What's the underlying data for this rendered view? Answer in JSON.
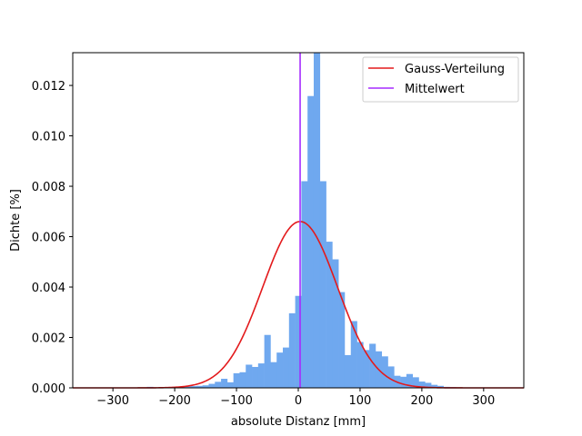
{
  "chart_data": {
    "type": "histogram",
    "xlabel": "absolute Distanz [mm]",
    "ylabel": "Dichte [%]",
    "xlim": [
      -365,
      365
    ],
    "ylim": [
      0,
      0.0133
    ],
    "x_ticks": [
      -300,
      -200,
      -100,
      0,
      100,
      200,
      300
    ],
    "x_tick_labels": [
      "−300",
      "−200",
      "−100",
      "0",
      "100",
      "200",
      "300"
    ],
    "y_ticks": [
      0,
      0.002,
      0.004,
      0.006,
      0.008,
      0.01,
      0.012
    ],
    "y_tick_labels": [
      "0.000",
      "0.002",
      "0.004",
      "0.006",
      "0.008",
      "0.010",
      "0.012"
    ],
    "grid": false,
    "legend_position": "top-right",
    "histogram": {
      "color": "#6fa8ef",
      "bins": [
        [
          -245,
          -235,
          4e-05
        ],
        [
          -235,
          -225,
          1e-05
        ],
        [
          -225,
          -215,
          2e-05
        ],
        [
          -215,
          -205,
          1e-05
        ],
        [
          -205,
          -195,
          4e-05
        ],
        [
          -195,
          -185,
          3e-05
        ],
        [
          -185,
          -175,
          5e-05
        ],
        [
          -175,
          -165,
          7e-05
        ],
        [
          -165,
          -155,
          8e-05
        ],
        [
          -155,
          -145,
          0.0001
        ],
        [
          -145,
          -135,
          0.00016
        ],
        [
          -135,
          -125,
          0.00024
        ],
        [
          -125,
          -115,
          0.00036
        ],
        [
          -115,
          -105,
          0.00022
        ],
        [
          -105,
          -95,
          0.00058
        ],
        [
          -95,
          -85,
          0.00062
        ],
        [
          -85,
          -75,
          0.00092
        ],
        [
          -75,
          -65,
          0.00083
        ],
        [
          -65,
          -55,
          0.00097
        ],
        [
          -55,
          -45,
          0.0021
        ],
        [
          -45,
          -35,
          0.00102
        ],
        [
          -35,
          -25,
          0.0014
        ],
        [
          -25,
          -15,
          0.0016
        ],
        [
          -15,
          -5,
          0.00296
        ],
        [
          -5,
          5,
          0.00365
        ],
        [
          5,
          15,
          0.0082
        ],
        [
          15,
          25,
          0.01158
        ],
        [
          25,
          35,
          0.0133
        ],
        [
          35,
          45,
          0.0082
        ],
        [
          45,
          55,
          0.0058
        ],
        [
          55,
          65,
          0.0051
        ],
        [
          65,
          75,
          0.0038
        ],
        [
          75,
          85,
          0.0013
        ],
        [
          85,
          95,
          0.00265
        ],
        [
          95,
          105,
          0.00182
        ],
        [
          105,
          115,
          0.0015
        ],
        [
          115,
          125,
          0.00175
        ],
        [
          125,
          135,
          0.00145
        ],
        [
          135,
          145,
          0.00125
        ],
        [
          145,
          155,
          0.00085
        ],
        [
          155,
          165,
          0.00048
        ],
        [
          165,
          175,
          0.00044
        ],
        [
          175,
          185,
          0.00055
        ],
        [
          185,
          195,
          0.00042
        ],
        [
          195,
          205,
          0.00025
        ],
        [
          205,
          215,
          0.0002
        ],
        [
          215,
          225,
          0.00012
        ],
        [
          225,
          235,
          8e-05
        ],
        [
          235,
          245,
          4e-05
        ],
        [
          245,
          255,
          3e-05
        ]
      ]
    },
    "series": [
      {
        "name": "Gauss-Verteilung",
        "type": "normal_curve",
        "mean": 3,
        "std": 60.5,
        "peak": 0.0066,
        "color": "#e31a1c"
      },
      {
        "name": "Mittelwert",
        "type": "vline",
        "x": 3,
        "color": "#a52bff"
      }
    ]
  }
}
